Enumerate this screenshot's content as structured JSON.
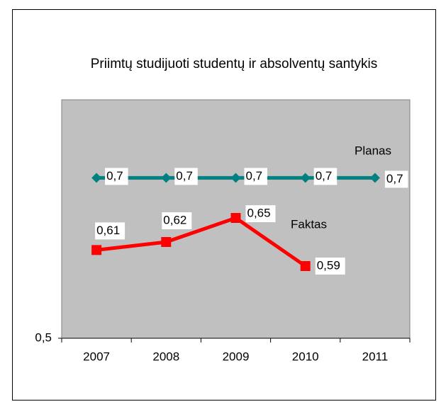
{
  "chart_data": {
    "type": "line",
    "title": "Priimtų studijuoti studentų ir absolventų santykis",
    "categories": [
      "2007",
      "2008",
      "2009",
      "2010",
      "2011"
    ],
    "series": [
      {
        "name": "Planas",
        "color": "#008080",
        "marker": "diamond",
        "values": [
          0.7,
          0.7,
          0.7,
          0.7,
          0.7
        ],
        "value_labels": [
          "0,7",
          "0,7",
          "0,7",
          "0,7",
          "0,7"
        ]
      },
      {
        "name": "Faktas",
        "color": "#ff0000",
        "marker": "square",
        "values": [
          0.61,
          0.62,
          0.65,
          0.59,
          null
        ],
        "value_labels": [
          "0,61",
          "0,62",
          "0,65",
          "0,59",
          null
        ]
      }
    ],
    "ylim": [
      0.5,
      0.8
    ],
    "yticks": [
      {
        "value": 0.5,
        "label": "0,5"
      }
    ],
    "plot_background": "#c0c0c0"
  }
}
